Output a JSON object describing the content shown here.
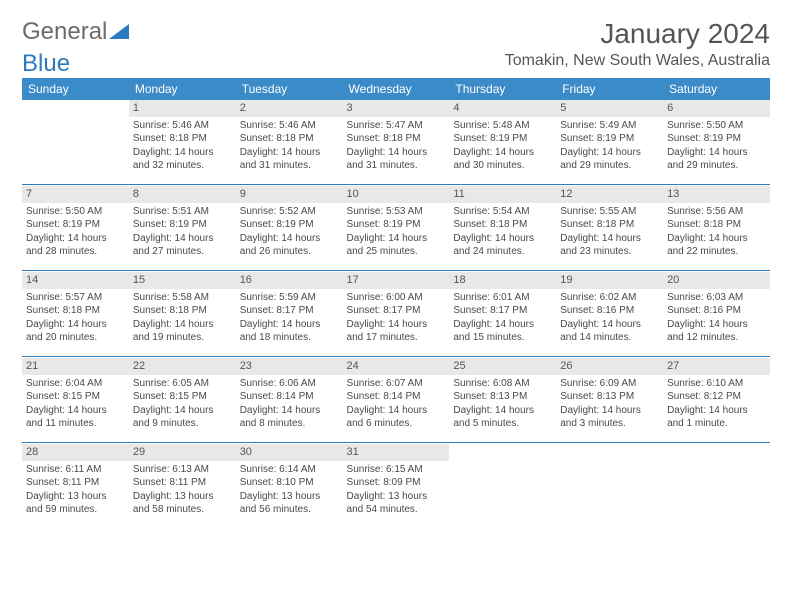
{
  "brand": {
    "part1": "General",
    "part2": "Blue"
  },
  "title": "January 2024",
  "location": "Tomakin, New South Wales, Australia",
  "colors": {
    "header_bg": "#3b8bc9",
    "header_text": "#ffffff",
    "daynum_bg": "#e8e8e8",
    "divider": "#2b7bbf",
    "text": "#4a4a4a",
    "title_text": "#555555",
    "logo_gray": "#6b6b6b",
    "logo_blue": "#2b7bbf",
    "background": "#ffffff"
  },
  "typography": {
    "title_fontsize": 28,
    "location_fontsize": 16,
    "header_fontsize": 12,
    "cell_fontsize": 10,
    "daynum_fontsize": 11
  },
  "weekdays": [
    "Sunday",
    "Monday",
    "Tuesday",
    "Wednesday",
    "Thursday",
    "Friday",
    "Saturday"
  ],
  "weeks": [
    [
      null,
      {
        "n": "1",
        "sr": "Sunrise: 5:46 AM",
        "ss": "Sunset: 8:18 PM",
        "d1": "Daylight: 14 hours",
        "d2": "and 32 minutes."
      },
      {
        "n": "2",
        "sr": "Sunrise: 5:46 AM",
        "ss": "Sunset: 8:18 PM",
        "d1": "Daylight: 14 hours",
        "d2": "and 31 minutes."
      },
      {
        "n": "3",
        "sr": "Sunrise: 5:47 AM",
        "ss": "Sunset: 8:18 PM",
        "d1": "Daylight: 14 hours",
        "d2": "and 31 minutes."
      },
      {
        "n": "4",
        "sr": "Sunrise: 5:48 AM",
        "ss": "Sunset: 8:19 PM",
        "d1": "Daylight: 14 hours",
        "d2": "and 30 minutes."
      },
      {
        "n": "5",
        "sr": "Sunrise: 5:49 AM",
        "ss": "Sunset: 8:19 PM",
        "d1": "Daylight: 14 hours",
        "d2": "and 29 minutes."
      },
      {
        "n": "6",
        "sr": "Sunrise: 5:50 AM",
        "ss": "Sunset: 8:19 PM",
        "d1": "Daylight: 14 hours",
        "d2": "and 29 minutes."
      }
    ],
    [
      {
        "n": "7",
        "sr": "Sunrise: 5:50 AM",
        "ss": "Sunset: 8:19 PM",
        "d1": "Daylight: 14 hours",
        "d2": "and 28 minutes."
      },
      {
        "n": "8",
        "sr": "Sunrise: 5:51 AM",
        "ss": "Sunset: 8:19 PM",
        "d1": "Daylight: 14 hours",
        "d2": "and 27 minutes."
      },
      {
        "n": "9",
        "sr": "Sunrise: 5:52 AM",
        "ss": "Sunset: 8:19 PM",
        "d1": "Daylight: 14 hours",
        "d2": "and 26 minutes."
      },
      {
        "n": "10",
        "sr": "Sunrise: 5:53 AM",
        "ss": "Sunset: 8:19 PM",
        "d1": "Daylight: 14 hours",
        "d2": "and 25 minutes."
      },
      {
        "n": "11",
        "sr": "Sunrise: 5:54 AM",
        "ss": "Sunset: 8:18 PM",
        "d1": "Daylight: 14 hours",
        "d2": "and 24 minutes."
      },
      {
        "n": "12",
        "sr": "Sunrise: 5:55 AM",
        "ss": "Sunset: 8:18 PM",
        "d1": "Daylight: 14 hours",
        "d2": "and 23 minutes."
      },
      {
        "n": "13",
        "sr": "Sunrise: 5:56 AM",
        "ss": "Sunset: 8:18 PM",
        "d1": "Daylight: 14 hours",
        "d2": "and 22 minutes."
      }
    ],
    [
      {
        "n": "14",
        "sr": "Sunrise: 5:57 AM",
        "ss": "Sunset: 8:18 PM",
        "d1": "Daylight: 14 hours",
        "d2": "and 20 minutes."
      },
      {
        "n": "15",
        "sr": "Sunrise: 5:58 AM",
        "ss": "Sunset: 8:18 PM",
        "d1": "Daylight: 14 hours",
        "d2": "and 19 minutes."
      },
      {
        "n": "16",
        "sr": "Sunrise: 5:59 AM",
        "ss": "Sunset: 8:17 PM",
        "d1": "Daylight: 14 hours",
        "d2": "and 18 minutes."
      },
      {
        "n": "17",
        "sr": "Sunrise: 6:00 AM",
        "ss": "Sunset: 8:17 PM",
        "d1": "Daylight: 14 hours",
        "d2": "and 17 minutes."
      },
      {
        "n": "18",
        "sr": "Sunrise: 6:01 AM",
        "ss": "Sunset: 8:17 PM",
        "d1": "Daylight: 14 hours",
        "d2": "and 15 minutes."
      },
      {
        "n": "19",
        "sr": "Sunrise: 6:02 AM",
        "ss": "Sunset: 8:16 PM",
        "d1": "Daylight: 14 hours",
        "d2": "and 14 minutes."
      },
      {
        "n": "20",
        "sr": "Sunrise: 6:03 AM",
        "ss": "Sunset: 8:16 PM",
        "d1": "Daylight: 14 hours",
        "d2": "and 12 minutes."
      }
    ],
    [
      {
        "n": "21",
        "sr": "Sunrise: 6:04 AM",
        "ss": "Sunset: 8:15 PM",
        "d1": "Daylight: 14 hours",
        "d2": "and 11 minutes."
      },
      {
        "n": "22",
        "sr": "Sunrise: 6:05 AM",
        "ss": "Sunset: 8:15 PM",
        "d1": "Daylight: 14 hours",
        "d2": "and 9 minutes."
      },
      {
        "n": "23",
        "sr": "Sunrise: 6:06 AM",
        "ss": "Sunset: 8:14 PM",
        "d1": "Daylight: 14 hours",
        "d2": "and 8 minutes."
      },
      {
        "n": "24",
        "sr": "Sunrise: 6:07 AM",
        "ss": "Sunset: 8:14 PM",
        "d1": "Daylight: 14 hours",
        "d2": "and 6 minutes."
      },
      {
        "n": "25",
        "sr": "Sunrise: 6:08 AM",
        "ss": "Sunset: 8:13 PM",
        "d1": "Daylight: 14 hours",
        "d2": "and 5 minutes."
      },
      {
        "n": "26",
        "sr": "Sunrise: 6:09 AM",
        "ss": "Sunset: 8:13 PM",
        "d1": "Daylight: 14 hours",
        "d2": "and 3 minutes."
      },
      {
        "n": "27",
        "sr": "Sunrise: 6:10 AM",
        "ss": "Sunset: 8:12 PM",
        "d1": "Daylight: 14 hours",
        "d2": "and 1 minute."
      }
    ],
    [
      {
        "n": "28",
        "sr": "Sunrise: 6:11 AM",
        "ss": "Sunset: 8:11 PM",
        "d1": "Daylight: 13 hours",
        "d2": "and 59 minutes."
      },
      {
        "n": "29",
        "sr": "Sunrise: 6:13 AM",
        "ss": "Sunset: 8:11 PM",
        "d1": "Daylight: 13 hours",
        "d2": "and 58 minutes."
      },
      {
        "n": "30",
        "sr": "Sunrise: 6:14 AM",
        "ss": "Sunset: 8:10 PM",
        "d1": "Daylight: 13 hours",
        "d2": "and 56 minutes."
      },
      {
        "n": "31",
        "sr": "Sunrise: 6:15 AM",
        "ss": "Sunset: 8:09 PM",
        "d1": "Daylight: 13 hours",
        "d2": "and 54 minutes."
      },
      null,
      null,
      null
    ]
  ]
}
